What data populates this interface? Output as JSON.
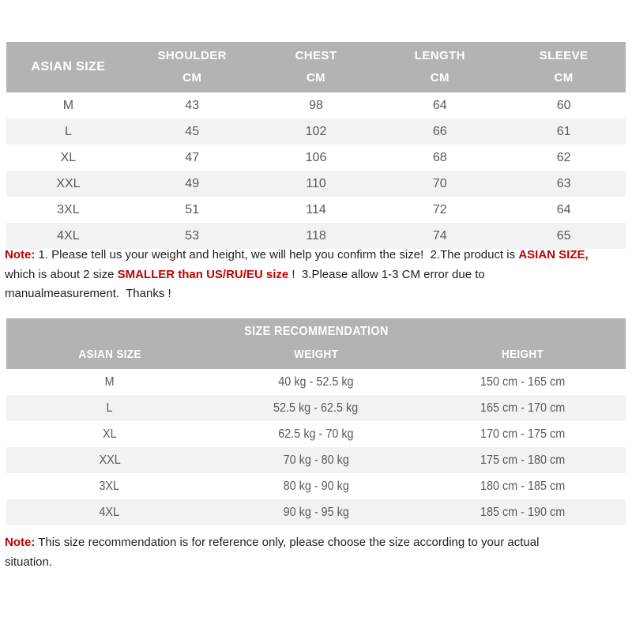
{
  "colors": {
    "header_bg": "#b3b3b3",
    "alt_row_bg": "#f2f2f2",
    "cell_text": "#595959",
    "note_text": "#1f1f1f",
    "accent_red": "#c00000"
  },
  "size_table": {
    "corner_label": "ASIAN SIZE",
    "columns": [
      {
        "label": "SHOULDER",
        "unit": "CM"
      },
      {
        "label": "CHEST",
        "unit": "CM"
      },
      {
        "label": "LENGTH",
        "unit": "CM"
      },
      {
        "label": "SLEEVE",
        "unit": "CM"
      }
    ],
    "rows": [
      {
        "size": "M",
        "values": [
          "43",
          "98",
          "64",
          "60"
        ]
      },
      {
        "size": "L",
        "values": [
          "45",
          "102",
          "66",
          "61"
        ]
      },
      {
        "size": "XL",
        "values": [
          "47",
          "106",
          "68",
          "62"
        ]
      },
      {
        "size": "XXL",
        "values": [
          "49",
          "110",
          "70",
          "63"
        ]
      },
      {
        "size": "3XL",
        "values": [
          "51",
          "114",
          "72",
          "64"
        ]
      },
      {
        "size": "4XL",
        "values": [
          "53",
          "118",
          "74",
          "65"
        ]
      }
    ]
  },
  "note1": {
    "segments": [
      {
        "text": "Note:",
        "red": true
      },
      {
        "text": " 1. Please tell us your weight and height, we will help you confirm the size!  2.The product is ",
        "red": false
      },
      {
        "text": "ASIAN SIZE,",
        "red": true
      },
      {
        "text": "\nwhich is about 2 size ",
        "red": false
      },
      {
        "text": "SMALLER than US/RU/EU size",
        "red": true
      },
      {
        "text": " !  3.Please allow 1-3 CM error due to\nmanualmeasurement.  Thanks !",
        "red": false
      }
    ]
  },
  "recommendation_table": {
    "title": "SIZE RECOMMENDATION",
    "columns": [
      "ASIAN SIZE",
      "WEIGHT",
      "HEIGHT"
    ],
    "rows": [
      {
        "size": "M",
        "weight": "40 kg - 52.5 kg",
        "height": "150 cm - 165 cm"
      },
      {
        "size": "L",
        "weight": "52.5 kg - 62.5 kg",
        "height": "165 cm - 170 cm"
      },
      {
        "size": "XL",
        "weight": "62.5 kg - 70 kg",
        "height": "170 cm - 175 cm"
      },
      {
        "size": "XXL",
        "weight": "70 kg - 80 kg",
        "height": "175 cm - 180 cm"
      },
      {
        "size": "3XL",
        "weight": "80 kg - 90 kg",
        "height": "180 cm - 185 cm"
      },
      {
        "size": "4XL",
        "weight": "90 kg - 95 kg",
        "height": "185 cm - 190 cm"
      }
    ]
  },
  "note2": {
    "segments": [
      {
        "text": "Note:",
        "red": true
      },
      {
        "text": " This size recommendation is for reference only, please choose the size according to your actual\nsituation.",
        "red": false
      }
    ]
  }
}
